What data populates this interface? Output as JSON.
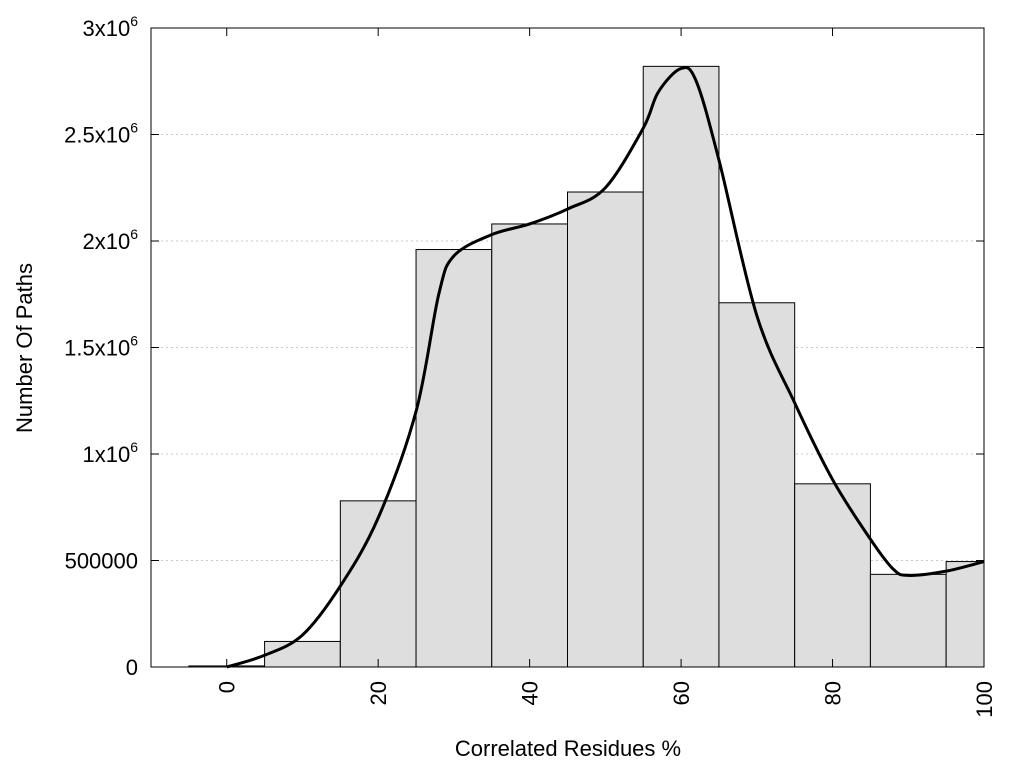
{
  "chart_data": {
    "type": "bar",
    "xlabel": "Correlated Residues %",
    "ylabel": "Number Of Paths",
    "xlim": [
      -10,
      100
    ],
    "ylim": [
      0,
      3000000
    ],
    "grid": "horizontal dotted",
    "x_ticks": [
      {
        "value": 0,
        "label": "0"
      },
      {
        "value": 20,
        "label": "20"
      },
      {
        "value": 40,
        "label": "40"
      },
      {
        "value": 60,
        "label": "60"
      },
      {
        "value": 80,
        "label": "80"
      },
      {
        "value": 100,
        "label": "100"
      }
    ],
    "y_ticks": [
      {
        "value": 0,
        "base": "0",
        "exp": ""
      },
      {
        "value": 500000,
        "base": "500000",
        "exp": ""
      },
      {
        "value": 1000000,
        "base": "1x10",
        "exp": "6"
      },
      {
        "value": 1500000,
        "base": "1.5x10",
        "exp": "6"
      },
      {
        "value": 2000000,
        "base": "2x10",
        "exp": "6"
      },
      {
        "value": 2500000,
        "base": "2.5x10",
        "exp": "6"
      },
      {
        "value": 3000000,
        "base": "3x10",
        "exp": "6"
      }
    ],
    "bins": [
      {
        "x0": -5,
        "x1": 5,
        "value": 5000
      },
      {
        "x0": 5,
        "x1": 15,
        "value": 120000
      },
      {
        "x0": 15,
        "x1": 25,
        "value": 780000
      },
      {
        "x0": 25,
        "x1": 35,
        "value": 1960000
      },
      {
        "x0": 35,
        "x1": 45,
        "value": 2080000
      },
      {
        "x0": 45,
        "x1": 55,
        "value": 2230000
      },
      {
        "x0": 55,
        "x1": 65,
        "value": 2820000
      },
      {
        "x0": 65,
        "x1": 75,
        "value": 1710000
      },
      {
        "x0": 75,
        "x1": 85,
        "value": 860000
      },
      {
        "x0": 85,
        "x1": 95,
        "value": 435000
      },
      {
        "x0": 95,
        "x1": 100,
        "value": 495000
      }
    ],
    "curve": {
      "x": [
        0,
        5,
        10,
        15,
        20,
        25,
        28,
        30,
        35,
        40,
        45,
        50,
        55,
        57,
        60,
        62,
        65,
        70,
        75,
        80,
        85,
        88,
        90,
        95,
        100
      ],
      "y": [
        0,
        55000,
        150000,
        380000,
        700000,
        1200000,
        1750000,
        1930000,
        2030000,
        2080000,
        2150000,
        2250000,
        2530000,
        2700000,
        2810000,
        2750000,
        2380000,
        1650000,
        1240000,
        880000,
        600000,
        460000,
        430000,
        450000,
        495000
      ]
    },
    "colors": {
      "bar_fill": "#dedede",
      "bar_stroke": "#000000",
      "curve": "#000000",
      "grid": "#c8c8c8"
    }
  }
}
